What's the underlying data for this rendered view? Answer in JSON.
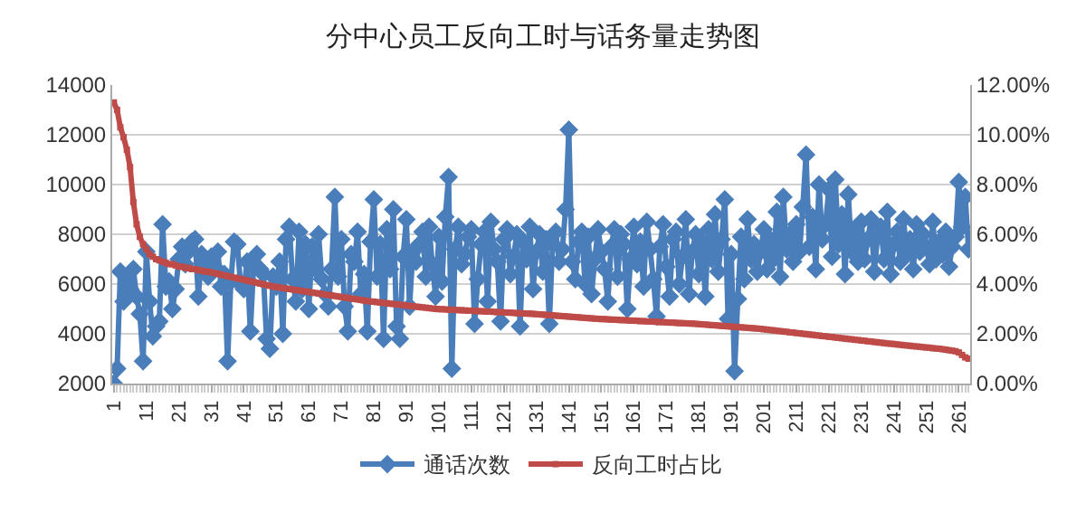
{
  "chart_data": {
    "type": "line",
    "title": "分中心员工反向工时与话务量走势图",
    "categories": [
      "1",
      null,
      null,
      null,
      null,
      null,
      null,
      null,
      null,
      null,
      "11",
      null,
      null,
      null,
      null,
      null,
      null,
      null,
      null,
      null,
      "21",
      null,
      null,
      null,
      null,
      null,
      null,
      null,
      null,
      null,
      "31",
      null,
      null,
      null,
      null,
      null,
      null,
      null,
      null,
      null,
      "41",
      null,
      null,
      null,
      null,
      null,
      null,
      null,
      null,
      null,
      "51",
      null,
      null,
      null,
      null,
      null,
      null,
      null,
      null,
      null,
      "61",
      null,
      null,
      null,
      null,
      null,
      null,
      null,
      null,
      null,
      "71",
      null,
      null,
      null,
      null,
      null,
      null,
      null,
      null,
      null,
      "81",
      null,
      null,
      null,
      null,
      null,
      null,
      null,
      null,
      null,
      "91",
      null,
      null,
      null,
      null,
      null,
      null,
      null,
      null,
      null,
      "101",
      null,
      null,
      null,
      null,
      null,
      null,
      null,
      null,
      null,
      "111",
      null,
      null,
      null,
      null,
      null,
      null,
      null,
      null,
      null,
      "121",
      null,
      null,
      null,
      null,
      null,
      null,
      null,
      null,
      null,
      "131",
      null,
      null,
      null,
      null,
      null,
      null,
      null,
      null,
      null,
      "141",
      null,
      null,
      null,
      null,
      null,
      null,
      null,
      null,
      null,
      "151",
      null,
      null,
      null,
      null,
      null,
      null,
      null,
      null,
      null,
      "161",
      null,
      null,
      null,
      null,
      null,
      null,
      null,
      null,
      null,
      "171",
      null,
      null,
      null,
      null,
      null,
      null,
      null,
      null,
      null,
      "181",
      null,
      null,
      null,
      null,
      null,
      null,
      null,
      null,
      null,
      "191",
      null,
      null,
      null,
      null,
      null,
      null,
      null,
      null,
      null,
      "201",
      null,
      null,
      null,
      null,
      null,
      null,
      null,
      null,
      null,
      "211",
      null,
      null,
      null,
      null,
      null,
      null,
      null,
      null,
      null,
      "221",
      null,
      null,
      null,
      null,
      null,
      null,
      null,
      null,
      null,
      "231",
      null,
      null,
      null,
      null,
      null,
      null,
      null,
      null,
      null,
      "241",
      null,
      null,
      null,
      null,
      null,
      null,
      null,
      null,
      null,
      "251",
      null,
      null,
      null,
      null,
      null,
      null,
      null,
      null,
      null,
      "261",
      null,
      null,
      null
    ],
    "series": [
      {
        "name": "通话次数",
        "color": "#4a7ebb",
        "marker": "diamond",
        "values": [
          2000,
          2600,
          6500,
          5300,
          6200,
          5800,
          6600,
          5500,
          4800,
          2900,
          7300,
          5300,
          3900,
          4300,
          4500,
          8400,
          5900,
          6100,
          5000,
          5800,
          7000,
          7500,
          6800,
          7300,
          7700,
          7800,
          5500,
          7200,
          6900,
          6300,
          7100,
          6700,
          7300,
          5900,
          6400,
          2900,
          6100,
          7700,
          7600,
          6000,
          5800,
          6900,
          4100,
          6700,
          7200,
          6600,
          6400,
          3800,
          3400,
          6300,
          5900,
          6900,
          4000,
          7800,
          8300,
          6200,
          5300,
          8100,
          5800,
          7600,
          5000,
          7500,
          6600,
          8000,
          6200,
          5600,
          5100,
          6600,
          9500,
          6300,
          7800,
          5100,
          4100,
          7200,
          6900,
          8100,
          5600,
          6400,
          4100,
          7700,
          9400,
          6300,
          7600,
          3800,
          8200,
          6600,
          9000,
          4300,
          3800,
          7100,
          8600,
          5100,
          7300,
          6900,
          7600,
          8100,
          6300,
          8300,
          6800,
          5500,
          7900,
          6100,
          8700,
          10300,
          2600,
          7400,
          8300,
          6800,
          7200,
          7900,
          8200,
          4400,
          6200,
          7600,
          8100,
          5300,
          8500,
          7400,
          6900,
          4500,
          7800,
          8200,
          6400,
          7100,
          8000,
          4300,
          7700,
          7000,
          8300,
          5800,
          7300,
          8000,
          6500,
          7800,
          4400,
          7600,
          8100,
          6900,
          7400,
          9000,
          12200,
          6900,
          6200,
          7700,
          8100,
          6000,
          7900,
          5600,
          7000,
          8200,
          7300,
          6600,
          5300,
          7500,
          8200,
          6300,
          8000,
          7600,
          5000,
          7000,
          8300,
          6800,
          7700,
          5900,
          8500,
          7400,
          6200,
          4700,
          7500,
          8400,
          6700,
          5500,
          7800,
          8100,
          6000,
          7100,
          8600,
          5600,
          7300,
          8000,
          6400,
          7700,
          5500,
          8200,
          7000,
          8800,
          6500,
          7800,
          9400,
          4600,
          7200,
          2500,
          5400,
          7900,
          6200,
          8600,
          7000,
          7600,
          6500,
          7300,
          8200,
          6600,
          7800,
          7000,
          8900,
          6300,
          9500,
          7400,
          8000,
          6900,
          8400,
          7300,
          9100,
          11200,
          7500,
          8700,
          6600,
          10000,
          7800,
          8400,
          9800,
          7100,
          10200,
          7600,
          8800,
          6400,
          9600,
          7300,
          8200,
          6900,
          8500,
          7000,
          7800,
          8600,
          6500,
          7900,
          8300,
          7000,
          8900,
          6400,
          7600,
          8100,
          6900,
          8600,
          7200,
          7800,
          6600,
          8400,
          7300,
          8000,
          7500,
          6800,
          8500,
          7000,
          7700,
          7200,
          8100,
          6700,
          7500,
          7900,
          10100,
          8300,
          9500,
          7400
        ]
      },
      {
        "name": "反向工时占比",
        "color": "#be4b48",
        "marker": "square",
        "axis": "y2",
        "values": [
          11.3,
          11.0,
          10.3,
          9.9,
          9.4,
          8.7,
          7.3,
          6.4,
          5.9,
          5.6,
          5.4,
          5.2,
          5.1,
          5.0,
          4.95,
          4.9,
          4.85,
          4.8,
          4.8,
          4.75,
          4.7,
          4.7,
          4.65,
          4.65,
          4.6,
          4.6,
          4.55,
          4.55,
          4.5,
          4.5,
          4.47,
          4.44,
          4.41,
          4.38,
          4.35,
          4.32,
          4.29,
          4.26,
          4.23,
          4.2,
          4.17,
          4.14,
          4.11,
          4.08,
          4.05,
          4.02,
          3.99,
          3.96,
          3.93,
          3.9,
          3.88,
          3.86,
          3.84,
          3.82,
          3.8,
          3.78,
          3.76,
          3.74,
          3.72,
          3.7,
          3.68,
          3.66,
          3.64,
          3.62,
          3.6,
          3.58,
          3.56,
          3.54,
          3.52,
          3.5,
          3.48,
          3.46,
          3.44,
          3.42,
          3.4,
          3.38,
          3.36,
          3.34,
          3.32,
          3.3,
          3.29,
          3.27,
          3.26,
          3.24,
          3.23,
          3.21,
          3.2,
          3.18,
          3.17,
          3.15,
          3.14,
          3.12,
          3.11,
          3.09,
          3.08,
          3.06,
          3.05,
          3.03,
          3.02,
          3.0,
          2.99,
          2.99,
          2.98,
          2.97,
          2.97,
          2.96,
          2.95,
          2.95,
          2.94,
          2.93,
          2.93,
          2.92,
          2.91,
          2.91,
          2.9,
          2.89,
          2.89,
          2.88,
          2.87,
          2.87,
          2.86,
          2.85,
          2.85,
          2.84,
          2.83,
          2.83,
          2.82,
          2.81,
          2.81,
          2.8,
          2.79,
          2.78,
          2.77,
          2.76,
          2.75,
          2.74,
          2.73,
          2.72,
          2.71,
          2.7,
          2.69,
          2.68,
          2.67,
          2.66,
          2.65,
          2.64,
          2.63,
          2.62,
          2.61,
          2.6,
          2.59,
          2.59,
          2.58,
          2.57,
          2.57,
          2.56,
          2.55,
          2.55,
          2.54,
          2.53,
          2.53,
          2.52,
          2.51,
          2.51,
          2.5,
          2.49,
          2.49,
          2.48,
          2.47,
          2.47,
          2.46,
          2.45,
          2.45,
          2.44,
          2.43,
          2.43,
          2.42,
          2.41,
          2.41,
          2.4,
          2.39,
          2.38,
          2.37,
          2.36,
          2.35,
          2.34,
          2.33,
          2.32,
          2.31,
          2.3,
          2.29,
          2.28,
          2.27,
          2.26,
          2.25,
          2.24,
          2.23,
          2.22,
          2.21,
          2.2,
          2.18,
          2.17,
          2.15,
          2.14,
          2.12,
          2.11,
          2.09,
          2.08,
          2.06,
          2.05,
          2.03,
          2.02,
          2.0,
          1.99,
          1.97,
          1.96,
          1.94,
          1.93,
          1.91,
          1.9,
          1.88,
          1.87,
          1.85,
          1.84,
          1.82,
          1.81,
          1.79,
          1.78,
          1.76,
          1.75,
          1.73,
          1.72,
          1.7,
          1.69,
          1.67,
          1.66,
          1.64,
          1.63,
          1.61,
          1.6,
          1.59,
          1.57,
          1.56,
          1.54,
          1.53,
          1.52,
          1.5,
          1.49,
          1.48,
          1.46,
          1.45,
          1.44,
          1.42,
          1.41,
          1.4,
          1.38,
          1.36,
          1.34,
          1.32,
          1.3,
          1.25,
          1.15,
          1.05,
          1.0
        ]
      }
    ],
    "ylim": [
      2000,
      14000
    ],
    "yticks": [
      2000,
      4000,
      6000,
      8000,
      10000,
      12000,
      14000
    ],
    "y2lim": [
      0,
      12
    ],
    "y2ticks": [
      {
        "value": 0,
        "label": "0.00%"
      },
      {
        "value": 2,
        "label": "2.00%"
      },
      {
        "value": 4,
        "label": "4.00%"
      },
      {
        "value": 6,
        "label": "6.00%"
      },
      {
        "value": 8,
        "label": "8.00%"
      },
      {
        "value": 10,
        "label": "10.00%"
      },
      {
        "value": 12,
        "label": "12.00%"
      }
    ],
    "grid": "y",
    "legend": "bottom"
  }
}
